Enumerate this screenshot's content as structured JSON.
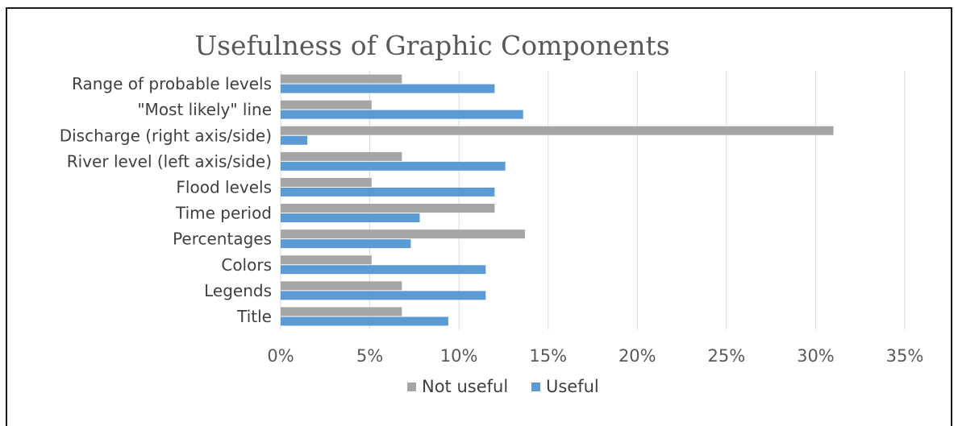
{
  "chart_data": {
    "type": "bar",
    "orientation": "horizontal",
    "title": "Usefulness of Graphic Components",
    "categories": [
      "Range of probable levels",
      "\"Most likely\" line ",
      "Discharge (right axis/side)",
      "River level (left axis/side)",
      "Flood levels",
      "Time period",
      "Percentages",
      "Colors",
      "Legends",
      "Title"
    ],
    "series": [
      {
        "name": "Not useful",
        "color": "#a5a5a5",
        "values": [
          6.8,
          5.1,
          31.0,
          6.8,
          5.1,
          12.0,
          13.7,
          5.1,
          6.8,
          6.8
        ]
      },
      {
        "name": "Useful",
        "color": "#5b9bd5",
        "values": [
          12.0,
          13.6,
          1.5,
          12.6,
          12.0,
          7.8,
          7.3,
          11.5,
          11.5,
          9.4
        ]
      }
    ],
    "xlim": [
      0,
      35
    ],
    "x_ticks": [
      "0%",
      "5%",
      "10%",
      "15%",
      "20%",
      "25%",
      "30%",
      "35%"
    ],
    "grid": true,
    "legend_position": "bottom"
  }
}
